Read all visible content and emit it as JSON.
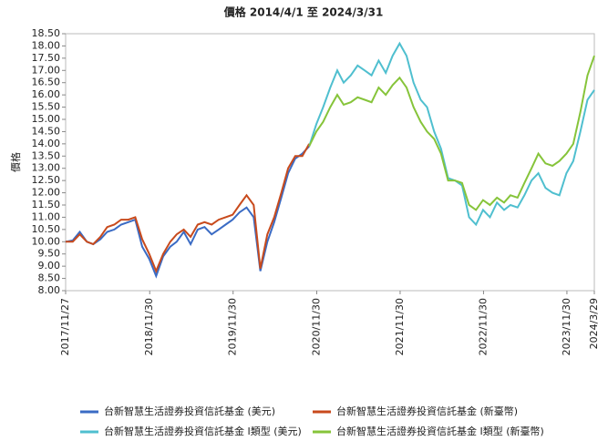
{
  "chart_data": {
    "type": "line",
    "title": "價格 2014/4/1 至 2024/3/31",
    "y_label": "價格",
    "x": [
      "2017/11/27",
      "2017/12/28",
      "2018/1/28",
      "2018/2/28",
      "2018/3/28",
      "2018/4/28",
      "2018/5/28",
      "2018/6/28",
      "2018/7/28",
      "2018/8/28",
      "2018/9/28",
      "2018/10/28",
      "2018/11/28",
      "2018/12/28",
      "2019/1/28",
      "2019/2/28",
      "2019/3/28",
      "2019/4/28",
      "2019/5/28",
      "2019/6/28",
      "2019/7/28",
      "2019/8/28",
      "2019/9/28",
      "2019/10/28",
      "2019/11/28",
      "2019/12/28",
      "2020/1/28",
      "2020/2/28",
      "2020/3/28",
      "2020/4/28",
      "2020/5/28",
      "2020/6/28",
      "2020/7/28",
      "2020/8/28",
      "2020/9/28",
      "2020/10/28",
      "2020/11/28",
      "2020/12/28",
      "2021/1/28",
      "2021/2/28",
      "2021/3/28",
      "2021/4/28",
      "2021/5/28",
      "2021/6/28",
      "2021/7/28",
      "2021/8/28",
      "2021/9/28",
      "2021/10/28",
      "2021/11/28",
      "2021/12/28",
      "2022/1/28",
      "2022/2/28",
      "2022/3/28",
      "2022/4/28",
      "2022/5/28",
      "2022/6/28",
      "2022/7/28",
      "2022/8/28",
      "2022/9/28",
      "2022/10/28",
      "2022/11/28",
      "2022/12/28",
      "2023/1/28",
      "2023/2/28",
      "2023/3/28",
      "2023/4/28",
      "2023/5/28",
      "2023/6/28",
      "2023/7/28",
      "2023/8/28",
      "2023/9/28",
      "2023/10/28",
      "2023/11/28",
      "2023/12/28",
      "2024/1/28",
      "2024/2/28",
      "2024/3/29"
    ],
    "series": [
      {
        "name": "台新智慧生活證券投資信託基金 (美元)",
        "color": "#3a6bc4",
        "values": [
          10.0,
          10.05,
          10.4,
          10.0,
          9.9,
          10.1,
          10.4,
          10.5,
          10.7,
          10.8,
          10.9,
          9.8,
          9.3,
          8.6,
          9.4,
          9.8,
          10.0,
          10.4,
          9.9,
          10.5,
          10.6,
          10.3,
          10.5,
          10.7,
          10.9,
          11.2,
          11.4,
          11.0,
          8.8,
          10.0,
          10.8,
          11.8,
          12.8,
          13.4,
          13.6,
          13.9,
          null,
          null,
          null,
          null,
          null,
          null,
          null,
          null,
          null,
          null,
          null,
          null,
          null,
          null,
          null,
          null,
          null,
          null,
          null,
          null,
          null,
          null,
          null,
          null,
          null,
          null,
          null,
          null,
          null,
          null,
          null,
          null,
          null,
          null,
          null,
          null,
          null,
          null,
          null,
          null,
          null
        ]
      },
      {
        "name": "台新智慧生活證券投資信託基金 (新臺幣)",
        "color": "#c84a1c",
        "values": [
          10.0,
          10.0,
          10.3,
          10.0,
          9.9,
          10.2,
          10.6,
          10.7,
          10.9,
          10.9,
          11.0,
          10.1,
          9.5,
          8.8,
          9.5,
          10.0,
          10.3,
          10.5,
          10.2,
          10.7,
          10.8,
          10.7,
          10.9,
          11.0,
          11.1,
          11.5,
          11.9,
          11.5,
          8.9,
          10.3,
          11.0,
          12.0,
          13.0,
          13.5,
          13.5,
          14.0,
          null,
          null,
          null,
          null,
          null,
          null,
          null,
          null,
          null,
          null,
          null,
          null,
          null,
          null,
          null,
          null,
          null,
          null,
          null,
          null,
          null,
          null,
          null,
          null,
          null,
          null,
          null,
          null,
          null,
          null,
          null,
          null,
          null,
          null,
          null,
          null,
          null,
          null,
          null,
          null,
          null
        ]
      },
      {
        "name": "台新智慧生活證券投資信託基金 I類型 (美元)",
        "color": "#4fbfcf",
        "values": [
          null,
          null,
          null,
          null,
          null,
          null,
          null,
          null,
          null,
          null,
          null,
          null,
          null,
          null,
          null,
          null,
          null,
          null,
          null,
          null,
          null,
          null,
          null,
          null,
          null,
          null,
          null,
          null,
          null,
          null,
          null,
          null,
          null,
          null,
          null,
          13.9,
          14.8,
          15.5,
          16.3,
          17.0,
          16.5,
          16.8,
          17.2,
          17.0,
          16.8,
          17.4,
          16.9,
          17.6,
          18.1,
          17.6,
          16.5,
          15.8,
          15.5,
          14.5,
          13.8,
          12.6,
          12.5,
          12.3,
          11.0,
          10.7,
          11.3,
          11.0,
          11.6,
          11.3,
          11.5,
          11.4,
          11.9,
          12.5,
          12.8,
          12.2,
          12.0,
          11.9,
          12.8,
          13.3,
          14.5,
          15.8,
          16.2
        ]
      },
      {
        "name": "台新智慧生活證券投資信託基金 I類型 (新臺幣)",
        "color": "#86c43a",
        "values": [
          null,
          null,
          null,
          null,
          null,
          null,
          null,
          null,
          null,
          null,
          null,
          null,
          null,
          null,
          null,
          null,
          null,
          null,
          null,
          null,
          null,
          null,
          null,
          null,
          null,
          null,
          null,
          null,
          null,
          null,
          null,
          null,
          null,
          null,
          null,
          13.9,
          14.5,
          14.9,
          15.5,
          16.0,
          15.6,
          15.7,
          15.9,
          15.8,
          15.7,
          16.3,
          16.0,
          16.4,
          16.7,
          16.3,
          15.5,
          14.9,
          14.5,
          14.2,
          13.6,
          12.5,
          12.5,
          12.4,
          11.5,
          11.3,
          11.7,
          11.5,
          11.8,
          11.6,
          11.9,
          11.8,
          12.4,
          13.0,
          13.6,
          13.2,
          13.1,
          13.3,
          13.6,
          14.0,
          15.3,
          16.8,
          17.6
        ]
      }
    ],
    "xlim": [
      "2017/11/27",
      "2024/3/29"
    ],
    "xticks": [
      "2017/11/27",
      "2018/11/30",
      "2019/11/30",
      "2020/11/30",
      "2021/11/30",
      "2022/11/30",
      "2023/11/30",
      "2024/3/29"
    ],
    "ylim": [
      8,
      18.5
    ],
    "yticks": [
      {
        "value": 8,
        "label": "8.00"
      },
      {
        "value": 8.5,
        "label": "8.50"
      },
      {
        "value": 9,
        "label": "9.00"
      },
      {
        "value": 9.5,
        "label": "9.50"
      },
      {
        "value": 10,
        "label": "10.00"
      },
      {
        "value": 10.5,
        "label": "10.50"
      },
      {
        "value": 11,
        "label": "11.00"
      },
      {
        "value": 11.5,
        "label": "11.50"
      },
      {
        "value": 12,
        "label": "12.00"
      },
      {
        "value": 12.5,
        "label": "12.50"
      },
      {
        "value": 13,
        "label": "13.00"
      },
      {
        "value": 13.5,
        "label": "13.50"
      },
      {
        "value": 14,
        "label": "14.00"
      },
      {
        "value": 14.5,
        "label": "14.50"
      },
      {
        "value": 15,
        "label": "15.00"
      },
      {
        "value": 15.5,
        "label": "15.50"
      },
      {
        "value": 16,
        "label": "16.00"
      },
      {
        "value": 16.5,
        "label": "16.50"
      },
      {
        "value": 17,
        "label": "17.00"
      },
      {
        "value": 17.5,
        "label": "17.50"
      },
      {
        "value": 18,
        "label": "18.00"
      },
      {
        "value": 18.5,
        "label": "18.50"
      }
    ]
  }
}
